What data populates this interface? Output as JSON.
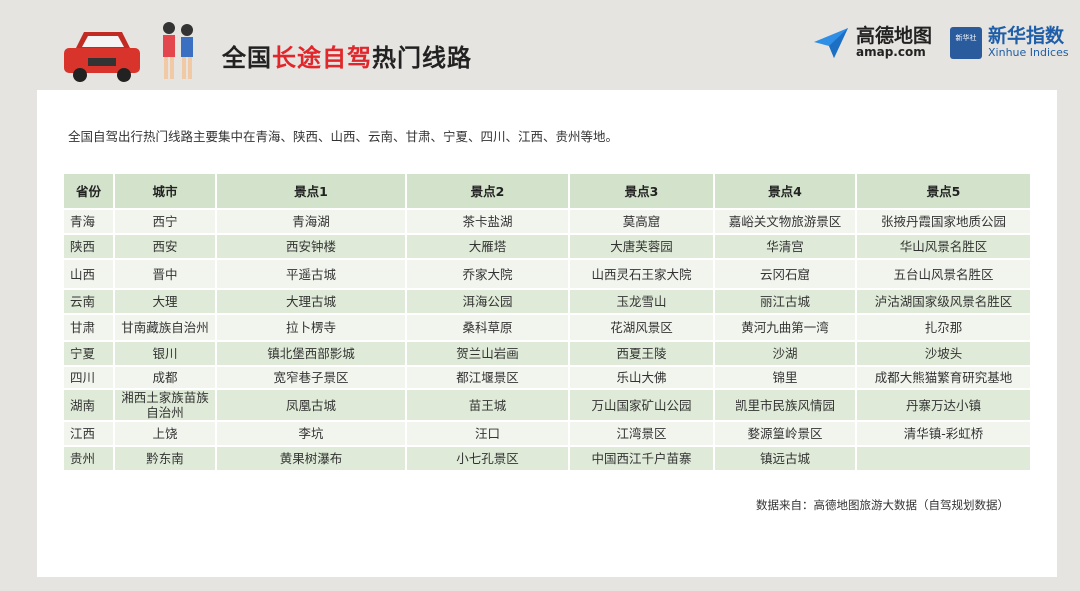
{
  "header": {
    "title_pre": "全国",
    "title_hl": "长途自驾",
    "title_post": "热门线路"
  },
  "logos": {
    "amap_name": "高德地图",
    "amap_url": "amap.com",
    "xinhua_badge": "新华社",
    "xinhua_name": "新华指数",
    "xinhua_en": "Xinhue Indices"
  },
  "intro": "全国自驾出行热门线路主要集中在青海、陕西、山西、云南、甘肃、宁夏、四川、江西、贵州等地。",
  "table": {
    "headers": [
      "省份",
      "城市",
      "景点1",
      "景点2",
      "景点3",
      "景点4",
      "景点5"
    ],
    "rows": [
      [
        "青海",
        "西宁",
        "青海湖",
        "茶卡盐湖",
        "莫高窟",
        "嘉峪关文物旅游景区",
        "张掖丹霞国家地质公园"
      ],
      [
        "陕西",
        "西安",
        "西安钟楼",
        "大雁塔",
        "大唐芙蓉园",
        "华清宫",
        "华山风景名胜区"
      ],
      [
        "山西",
        "晋中",
        "平遥古城",
        "乔家大院",
        "山西灵石王家大院",
        "云冈石窟",
        "五台山风景名胜区"
      ],
      [
        "云南",
        "大理",
        "大理古城",
        "洱海公园",
        "玉龙雪山",
        "丽江古城",
        "泸沽湖国家级风景名胜区"
      ],
      [
        "甘肃",
        "甘南藏族自治州",
        "拉卜楞寺",
        "桑科草原",
        "花湖风景区",
        "黄河九曲第一湾",
        "扎尕那"
      ],
      [
        "宁夏",
        "银川",
        "镇北堡西部影城",
        "贺兰山岩画",
        "西夏王陵",
        "沙湖",
        "沙坡头"
      ],
      [
        "四川",
        "成都",
        "宽窄巷子景区",
        "都江堰景区",
        "乐山大佛",
        "锦里",
        "成都大熊猫繁育研究基地"
      ],
      [
        "湖南",
        "湘西土家族苗族自治州",
        "凤凰古城",
        "苗王城",
        "万山国家矿山公园",
        "凯里市民族风情园",
        "丹寨万达小镇"
      ],
      [
        "江西",
        "上饶",
        "李坑",
        "汪口",
        "江湾景区",
        "婺源篁岭景区",
        "清华镇-彩虹桥"
      ],
      [
        "贵州",
        "黔东南",
        "黄果树瀑布",
        "小七孔景区",
        "中国西江千户苗寨",
        "镇远古城",
        ""
      ]
    ]
  },
  "source": "数据来自：高德地图旅游大数据（自驾规划数据）"
}
